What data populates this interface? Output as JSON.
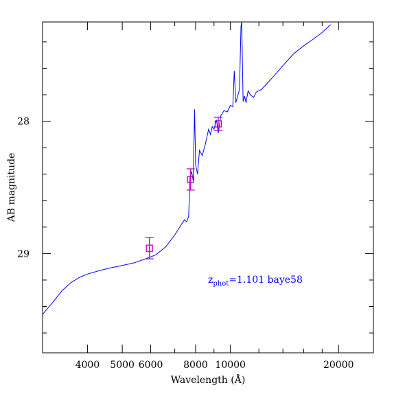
{
  "chart_data": {
    "type": "line",
    "xlabel": "Wavelength (Å)",
    "ylabel": "AB magnitude",
    "x_scale": "log",
    "y_inverted": true,
    "xlim": [
      3000,
      25000
    ],
    "ylim": [
      29.75,
      27.25
    ],
    "x_ticks_labeled": [
      "4000",
      "5000",
      "6000",
      "8000",
      "10000",
      "20000"
    ],
    "y_ticks_labeled": [
      "28",
      "29"
    ],
    "grid": false,
    "legend": "none",
    "colors": {
      "sed": "#0000ff",
      "photometry": "#c000c0",
      "annotation": "#0000ff",
      "axes": "#000000"
    },
    "annotation": {
      "z_main": "z",
      "z_sub": "phot",
      "z_rest": "=1.101 baye58"
    },
    "series": [
      {
        "type": "line",
        "points": [
          [
            3000,
            29.46
          ],
          [
            3200,
            29.37
          ],
          [
            3400,
            29.28
          ],
          [
            3600,
            29.22
          ],
          [
            3800,
            29.18
          ],
          [
            4000,
            29.155
          ],
          [
            4300,
            29.13
          ],
          [
            4600,
            29.11
          ],
          [
            5000,
            29.09
          ],
          [
            5400,
            29.07
          ],
          [
            5800,
            29.04
          ],
          [
            6200,
            29.01
          ],
          [
            6600,
            28.95
          ],
          [
            7000,
            28.86
          ],
          [
            7300,
            28.78
          ],
          [
            7450,
            28.745
          ],
          [
            7550,
            28.76
          ],
          [
            7650,
            28.72
          ],
          [
            7720,
            28.42
          ],
          [
            7800,
            28.38
          ],
          [
            7880,
            28.45
          ],
          [
            7950,
            27.91
          ],
          [
            8000,
            28.33
          ],
          [
            8100,
            28.4
          ],
          [
            8200,
            28.22
          ],
          [
            8350,
            28.26
          ],
          [
            8500,
            28.18
          ],
          [
            8600,
            28.12
          ],
          [
            8700,
            28.06
          ],
          [
            8800,
            28.1
          ],
          [
            8900,
            28.04
          ],
          [
            9000,
            28.06
          ],
          [
            9150,
            27.99
          ],
          [
            9250,
            28.09
          ],
          [
            9400,
            27.96
          ],
          [
            9600,
            27.92
          ],
          [
            9800,
            27.93
          ],
          [
            10000,
            27.88
          ],
          [
            10150,
            27.89
          ],
          [
            10250,
            27.62
          ],
          [
            10350,
            27.86
          ],
          [
            10450,
            27.82
          ],
          [
            10600,
            27.76
          ],
          [
            10700,
            27.28
          ],
          [
            10750,
            27.24
          ],
          [
            10850,
            27.85
          ],
          [
            10950,
            27.81
          ],
          [
            11050,
            27.86
          ],
          [
            11200,
            27.77
          ],
          [
            11350,
            27.8
          ],
          [
            11600,
            27.82
          ],
          [
            11800,
            27.78
          ],
          [
            12200,
            27.76
          ],
          [
            13000,
            27.68
          ],
          [
            14000,
            27.58
          ],
          [
            15000,
            27.49
          ],
          [
            16000,
            27.43
          ],
          [
            17000,
            27.38
          ],
          [
            18000,
            27.33
          ],
          [
            19000,
            27.27
          ]
        ]
      },
      {
        "type": "errorbar",
        "points": [
          {
            "x": 5950,
            "y": 28.96,
            "yerr": 0.08
          },
          {
            "x": 7750,
            "y": 28.44,
            "yerr": 0.08
          },
          {
            "x": 9250,
            "y": 28.02,
            "yerr": 0.05
          }
        ]
      }
    ]
  }
}
